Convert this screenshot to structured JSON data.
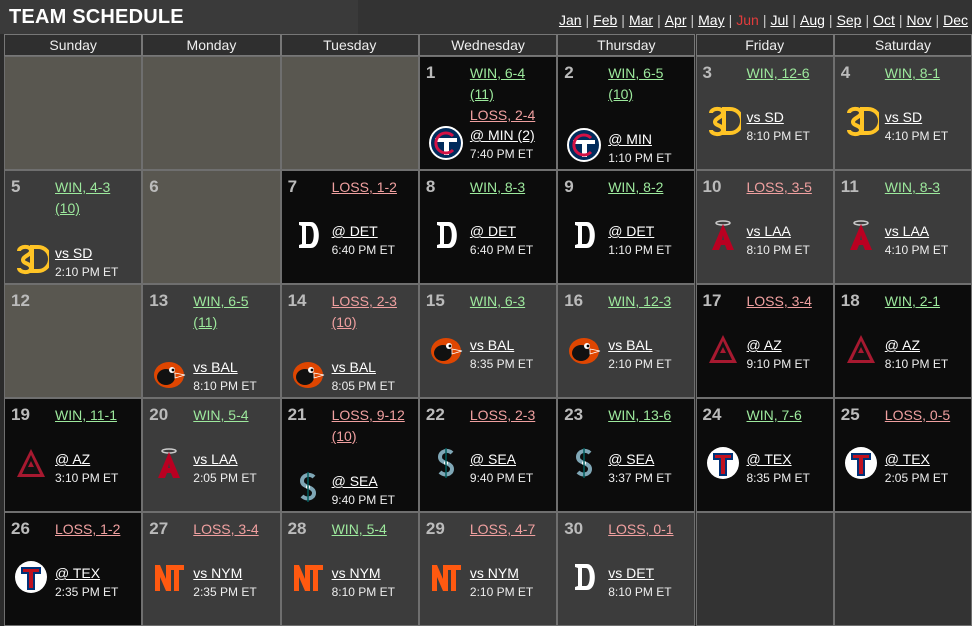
{
  "header": {
    "title": "TEAM SCHEDULE"
  },
  "months": [
    {
      "label": "Jan",
      "current": false
    },
    {
      "label": "Feb",
      "current": false
    },
    {
      "label": "Mar",
      "current": false
    },
    {
      "label": "Apr",
      "current": false
    },
    {
      "label": "May",
      "current": false
    },
    {
      "label": "Jun",
      "current": true
    },
    {
      "label": "Jul",
      "current": false
    },
    {
      "label": "Aug",
      "current": false
    },
    {
      "label": "Sep",
      "current": false
    },
    {
      "label": "Oct",
      "current": false
    },
    {
      "label": "Nov",
      "current": false
    },
    {
      "label": "Dec",
      "current": false
    }
  ],
  "weekdays": [
    "Sunday",
    "Monday",
    "Tuesday",
    "Wednesday",
    "Thursday",
    "Friday",
    "Saturday"
  ],
  "days": [
    {
      "col": 3,
      "row": 0,
      "day": "1",
      "home": false,
      "results": [
        {
          "text": "WIN, 6-4",
          "kind": "win"
        },
        {
          "text": "(11)",
          "kind": "win"
        },
        {
          "text": "LOSS, 2-4",
          "kind": "loss"
        }
      ],
      "opponent": "@ MIN (2)",
      "time": "7:40 PM ET",
      "logo": "twins-logo-icon"
    },
    {
      "col": 4,
      "row": 0,
      "day": "2",
      "home": false,
      "results": [
        {
          "text": "WIN, 6-5",
          "kind": "win"
        },
        {
          "text": "(10)",
          "kind": "win"
        }
      ],
      "opponent": "@ MIN",
      "time": "1:10 PM ET",
      "logo": "twins-logo-icon"
    },
    {
      "col": 5,
      "row": 0,
      "day": "3",
      "home": true,
      "results": [
        {
          "text": "WIN, 12-6",
          "kind": "win"
        }
      ],
      "opponent": "vs SD",
      "time": "8:10 PM ET",
      "logo": "padres-logo-icon"
    },
    {
      "col": 6,
      "row": 0,
      "day": "4",
      "home": true,
      "results": [
        {
          "text": "WIN, 8-1",
          "kind": "win"
        }
      ],
      "opponent": "vs SD",
      "time": "4:10 PM ET",
      "logo": "padres-logo-icon"
    },
    {
      "col": 0,
      "row": 1,
      "day": "5",
      "home": true,
      "results": [
        {
          "text": "WIN, 4-3",
          "kind": "win"
        },
        {
          "text": "(10)",
          "kind": "win"
        }
      ],
      "opponent": "vs SD",
      "time": "2:10 PM ET",
      "logo": "padres-logo-icon"
    },
    {
      "col": 1,
      "row": 1,
      "day": "6",
      "empty": true
    },
    {
      "col": 2,
      "row": 1,
      "day": "7",
      "home": false,
      "results": [
        {
          "text": "LOSS, 1-2",
          "kind": "loss"
        }
      ],
      "opponent": "@ DET",
      "time": "6:40 PM ET",
      "logo": "tigers-logo-icon"
    },
    {
      "col": 3,
      "row": 1,
      "day": "8",
      "home": false,
      "results": [
        {
          "text": "WIN, 8-3",
          "kind": "win"
        }
      ],
      "opponent": "@ DET",
      "time": "6:40 PM ET",
      "logo": "tigers-logo-icon"
    },
    {
      "col": 4,
      "row": 1,
      "day": "9",
      "home": false,
      "results": [
        {
          "text": "WIN, 8-2",
          "kind": "win"
        }
      ],
      "opponent": "@ DET",
      "time": "1:10 PM ET",
      "logo": "tigers-logo-icon"
    },
    {
      "col": 5,
      "row": 1,
      "day": "10",
      "home": true,
      "results": [
        {
          "text": "LOSS, 3-5",
          "kind": "loss"
        }
      ],
      "opponent": "vs LAA",
      "time": "8:10 PM ET",
      "logo": "angels-logo-icon"
    },
    {
      "col": 6,
      "row": 1,
      "day": "11",
      "home": true,
      "results": [
        {
          "text": "WIN, 8-3",
          "kind": "win"
        }
      ],
      "opponent": "vs LAA",
      "time": "4:10 PM ET",
      "logo": "angels-logo-icon"
    },
    {
      "col": 0,
      "row": 2,
      "day": "12",
      "empty": true
    },
    {
      "col": 1,
      "row": 2,
      "day": "13",
      "home": true,
      "results": [
        {
          "text": "WIN, 6-5",
          "kind": "win"
        },
        {
          "text": "(11)",
          "kind": "win"
        }
      ],
      "opponent": "vs BAL",
      "time": "8:10 PM ET",
      "logo": "orioles-logo-icon"
    },
    {
      "col": 2,
      "row": 2,
      "day": "14",
      "home": true,
      "results": [
        {
          "text": "LOSS, 2-3",
          "kind": "loss"
        },
        {
          "text": "(10)",
          "kind": "loss"
        }
      ],
      "opponent": "vs BAL",
      "time": "8:05 PM ET",
      "logo": "orioles-logo-icon"
    },
    {
      "col": 3,
      "row": 2,
      "day": "15",
      "home": true,
      "results": [
        {
          "text": "WIN, 6-3",
          "kind": "win"
        }
      ],
      "opponent": "vs BAL",
      "time": "8:35 PM ET",
      "logo": "orioles-logo-icon"
    },
    {
      "col": 4,
      "row": 2,
      "day": "16",
      "home": true,
      "results": [
        {
          "text": "WIN, 12-3",
          "kind": "win"
        }
      ],
      "opponent": "vs BAL",
      "time": "2:10 PM ET",
      "logo": "orioles-logo-icon"
    },
    {
      "col": 5,
      "row": 2,
      "day": "17",
      "home": false,
      "results": [
        {
          "text": "LOSS, 3-4",
          "kind": "loss"
        }
      ],
      "opponent": "@ AZ",
      "time": "9:10 PM ET",
      "logo": "diamondbacks-logo-icon"
    },
    {
      "col": 6,
      "row": 2,
      "day": "18",
      "home": false,
      "results": [
        {
          "text": "WIN, 2-1",
          "kind": "win"
        }
      ],
      "opponent": "@ AZ",
      "time": "8:10 PM ET",
      "logo": "diamondbacks-logo-icon"
    },
    {
      "col": 0,
      "row": 3,
      "day": "19",
      "home": false,
      "results": [
        {
          "text": "WIN, 11-1",
          "kind": "win"
        }
      ],
      "opponent": "@ AZ",
      "time": "3:10 PM ET",
      "logo": "diamondbacks-logo-icon"
    },
    {
      "col": 1,
      "row": 3,
      "day": "20",
      "home": true,
      "results": [
        {
          "text": "WIN, 5-4",
          "kind": "win"
        }
      ],
      "opponent": "vs LAA",
      "time": "2:05 PM ET",
      "logo": "angels-logo-icon"
    },
    {
      "col": 2,
      "row": 3,
      "day": "21",
      "home": false,
      "results": [
        {
          "text": "LOSS, 9-12",
          "kind": "loss"
        },
        {
          "text": "(10)",
          "kind": "loss"
        }
      ],
      "opponent": "@ SEA",
      "time": "9:40 PM ET",
      "logo": "mariners-logo-icon"
    },
    {
      "col": 3,
      "row": 3,
      "day": "22",
      "home": false,
      "results": [
        {
          "text": "LOSS, 2-3",
          "kind": "loss"
        }
      ],
      "opponent": "@ SEA",
      "time": "9:40 PM ET",
      "logo": "mariners-logo-icon"
    },
    {
      "col": 4,
      "row": 3,
      "day": "23",
      "home": false,
      "results": [
        {
          "text": "WIN, 13-6",
          "kind": "win"
        }
      ],
      "opponent": "@ SEA",
      "time": "3:37 PM ET",
      "logo": "mariners-logo-icon"
    },
    {
      "col": 5,
      "row": 3,
      "day": "24",
      "home": false,
      "results": [
        {
          "text": "WIN, 7-6",
          "kind": "win"
        }
      ],
      "opponent": "@ TEX",
      "time": "8:35 PM ET",
      "logo": "rangers-logo-icon"
    },
    {
      "col": 6,
      "row": 3,
      "day": "25",
      "home": false,
      "results": [
        {
          "text": "LOSS, 0-5",
          "kind": "loss"
        }
      ],
      "opponent": "@ TEX",
      "time": "2:05 PM ET",
      "logo": "rangers-logo-icon"
    },
    {
      "col": 0,
      "row": 4,
      "day": "26",
      "home": false,
      "results": [
        {
          "text": "LOSS, 1-2",
          "kind": "loss"
        }
      ],
      "opponent": "@ TEX",
      "time": "2:35 PM ET",
      "logo": "rangers-logo-icon"
    },
    {
      "col": 1,
      "row": 4,
      "day": "27",
      "home": true,
      "results": [
        {
          "text": "LOSS, 3-4",
          "kind": "loss"
        }
      ],
      "opponent": "vs NYM",
      "time": "2:35 PM ET",
      "logo": "mets-logo-icon"
    },
    {
      "col": 2,
      "row": 4,
      "day": "28",
      "home": true,
      "results": [
        {
          "text": "WIN, 5-4",
          "kind": "win"
        }
      ],
      "opponent": "vs NYM",
      "time": "8:10 PM ET",
      "logo": "mets-logo-icon"
    },
    {
      "col": 3,
      "row": 4,
      "day": "29",
      "home": true,
      "results": [
        {
          "text": "LOSS, 4-7",
          "kind": "loss"
        }
      ],
      "opponent": "vs NYM",
      "time": "2:10 PM ET",
      "logo": "mets-logo-icon"
    },
    {
      "col": 4,
      "row": 4,
      "day": "30",
      "home": true,
      "results": [
        {
          "text": "LOSS, 0-1",
          "kind": "loss"
        }
      ],
      "opponent": "vs DET",
      "time": "8:10 PM ET",
      "logo": "tigers-logo-icon"
    }
  ],
  "colors": {
    "win": "#9de99d",
    "loss": "#f0a0a0",
    "current_month": "#e23c3c"
  }
}
